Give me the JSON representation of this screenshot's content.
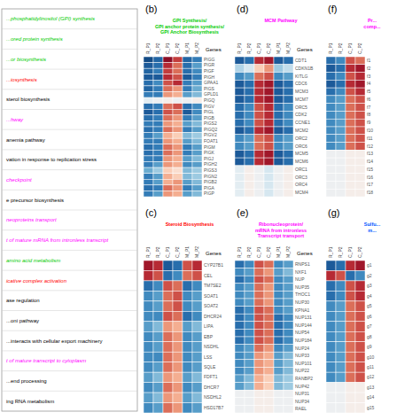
{
  "chart_data": [
    {
      "type": "list",
      "categories": [
        "...phosphatidylinositol (GPI) synthesis",
        "...ored protein synthesis",
        "...or biosynthesis",
        "...iosynthesis",
        "sterol biosynthesis",
        "...hway",
        "anemia pathway",
        "vation in response to replication stress",
        "checkpoint",
        "e precursor biosynthesis",
        "neoproteins transport",
        "t of mature mRNA from intronless transcript",
        "amino acid metabolism",
        "icative complex activation",
        "ase regulation",
        "...oni pathway",
        "...interacts with cellular export machinery",
        "t of mature transcript to cytoplasm",
        "...end processing",
        "ing RNA metabolism"
      ],
      "colors": [
        "#00cc00",
        "#00cc00",
        "#00cc00",
        "#ff0000",
        "#000000",
        "#ff00ff",
        "#000000",
        "#000000",
        "#ff00ff",
        "#000000",
        "#ff00ff",
        "#ff00ff",
        "#00cc00",
        "#ff0000",
        "#000000",
        "#000000",
        "#000000",
        "#ff00ff",
        "#000000",
        "#000000"
      ]
    },
    {
      "type": "heatmap",
      "label": "(b)",
      "title": "GPI Synthesis/\nGPI anchor protein synthesis/\nGPI Anchor Biosynthesis",
      "color": "#00cc00",
      "ylabel": "Genes",
      "x": [
        "R_P1",
        "R_P2",
        "C_P1",
        "C_P2",
        "M_P1",
        "M_P2"
      ],
      "y": [
        "PIGG",
        "PIGR",
        "PIGF",
        "PIGH",
        "GPAA1",
        "PIGS",
        "GPLD1",
        "PIGQ",
        "PIGV",
        "PIGL",
        "PIGB",
        "PIGS2",
        "PIGQ2",
        "PIGV2",
        "FOAT1",
        "PIGM",
        "PIGK",
        "PIGJ",
        "PIGH2",
        "PIGS3",
        "PIGN2",
        "PIGB2",
        "PIGA",
        "PIGP"
      ],
      "values": [
        [
          0.05,
          0.1,
          0.95,
          0.85,
          0.1,
          0.15
        ],
        [
          0.08,
          0.12,
          0.88,
          0.78,
          0.12,
          0.22
        ],
        [
          0.1,
          0.15,
          0.85,
          0.78,
          0.12,
          0.18
        ],
        [
          0.08,
          0.08,
          0.88,
          0.82,
          0.08,
          0.15
        ],
        [
          0.12,
          0.18,
          0.82,
          0.88,
          0.15,
          0.22
        ],
        [
          0.1,
          0.15,
          0.78,
          0.72,
          0.15,
          0.25
        ],
        [
          0.15,
          0.15,
          0.72,
          0.68,
          0.22,
          0.28
        ],
        [
          0.45,
          0.48,
          0.52,
          0.48,
          0.48,
          0.52
        ],
        [
          0.12,
          0.15,
          0.78,
          0.82,
          0.12,
          0.18
        ],
        [
          0.08,
          0.12,
          0.82,
          0.78,
          0.08,
          0.18
        ],
        [
          0.12,
          0.15,
          0.78,
          0.72,
          0.15,
          0.22
        ],
        [
          0.15,
          0.15,
          0.72,
          0.68,
          0.22,
          0.28
        ],
        [
          0.12,
          0.15,
          0.78,
          0.72,
          0.15,
          0.22
        ],
        [
          0.15,
          0.22,
          0.68,
          0.62,
          0.28,
          0.32
        ],
        [
          0.15,
          0.15,
          0.72,
          0.68,
          0.22,
          0.28
        ],
        [
          0.12,
          0.15,
          0.78,
          0.72,
          0.15,
          0.22
        ],
        [
          0.12,
          0.15,
          0.78,
          0.72,
          0.15,
          0.22
        ],
        [
          0.15,
          0.15,
          0.72,
          0.68,
          0.22,
          0.28
        ],
        [
          0.15,
          0.22,
          0.72,
          0.68,
          0.18,
          0.22
        ],
        [
          0.25,
          0.32,
          0.62,
          0.58,
          0.28,
          0.32
        ],
        [
          0.15,
          0.22,
          0.68,
          0.62,
          0.28,
          0.32
        ],
        [
          0.15,
          0.22,
          0.68,
          0.72,
          0.22,
          0.28
        ],
        [
          0.12,
          0.15,
          0.78,
          0.72,
          0.15,
          0.22
        ],
        [
          0.15,
          0.22,
          0.72,
          0.68,
          0.22,
          0.28
        ]
      ],
      "color_range": [
        0,
        1
      ]
    },
    {
      "type": "heatmap",
      "label": "(c)",
      "title": "Steroid Biosynthesis",
      "color": "#ff0000",
      "ylabel": "Genes",
      "x": [
        "R_P1",
        "R_P2",
        "C_P1",
        "C_P2",
        "M_P1",
        "M_P2"
      ],
      "y": [
        "CYP27B1",
        "CEL",
        "TM7SE2",
        "SOAT1",
        "SOAT2",
        "DHCR24",
        "LIPA",
        "EBP",
        "NSDHL",
        "LSS",
        "SQLE",
        "FDFT1",
        "DHCR7",
        "NSDHL2",
        "HSD17B7"
      ],
      "values": [
        [
          0.92,
          0.88,
          0.08,
          0.12,
          0.82,
          0.88
        ],
        [
          0.88,
          0.82,
          0.12,
          0.18,
          0.78,
          0.82
        ],
        [
          0.12,
          0.18,
          0.82,
          0.78,
          0.12,
          0.18
        ],
        [
          0.18,
          0.22,
          0.78,
          0.82,
          0.18,
          0.22
        ],
        [
          0.18,
          0.22,
          0.78,
          0.82,
          0.18,
          0.22
        ],
        [
          0.18,
          0.18,
          0.82,
          0.78,
          0.12,
          0.18
        ],
        [
          0.22,
          0.28,
          0.72,
          0.68,
          0.22,
          0.28
        ],
        [
          0.18,
          0.22,
          0.78,
          0.72,
          0.18,
          0.22
        ],
        [
          0.18,
          0.22,
          0.78,
          0.72,
          0.18,
          0.22
        ],
        [
          0.18,
          0.18,
          0.78,
          0.72,
          0.18,
          0.22
        ],
        [
          0.18,
          0.22,
          0.78,
          0.72,
          0.18,
          0.22
        ],
        [
          0.22,
          0.28,
          0.72,
          0.68,
          0.22,
          0.28
        ],
        [
          0.18,
          0.22,
          0.78,
          0.72,
          0.18,
          0.22
        ],
        [
          0.22,
          0.28,
          0.72,
          0.68,
          0.22,
          0.28
        ],
        [
          0.18,
          0.22,
          0.78,
          0.72,
          0.18,
          0.22
        ]
      ],
      "color_range": [
        0,
        1
      ]
    },
    {
      "type": "heatmap",
      "label": "(d)",
      "title": "MCM Pathway",
      "color": "#ff00ff",
      "ylabel": "Genes",
      "x": [
        "R_P1",
        "R_P2",
        "C_P1",
        "C_P2",
        "M_P1",
        "M_P2"
      ],
      "y": [
        "CDT1",
        "CDKN1B",
        "KITLG",
        "CDC6",
        "MCM3",
        "MCM7",
        "ORC5",
        "CDK2",
        "CCNE1",
        "MCM2",
        "ORC2",
        "ORC6",
        "MCM5",
        "MCM6",
        "ORC1",
        "ORC3",
        "ORC4",
        "MCM4"
      ],
      "values": [
        [
          0.08,
          0.12,
          0.88,
          0.92,
          0.08,
          0.12
        ],
        [
          0.35,
          0.42,
          0.62,
          0.72,
          0.32,
          0.38
        ],
        [
          0.18,
          0.22,
          0.78,
          0.82,
          0.18,
          0.22
        ],
        [
          0.08,
          0.12,
          0.88,
          0.92,
          0.08,
          0.12
        ],
        [
          0.08,
          0.12,
          0.88,
          0.92,
          0.08,
          0.12
        ],
        [
          0.08,
          0.12,
          0.88,
          0.92,
          0.08,
          0.12
        ],
        [
          0.12,
          0.18,
          0.82,
          0.88,
          0.12,
          0.18
        ],
        [
          0.12,
          0.18,
          0.82,
          0.88,
          0.12,
          0.18
        ],
        [
          0.12,
          0.18,
          0.82,
          0.88,
          0.12,
          0.18
        ],
        [
          0.08,
          0.12,
          0.88,
          0.92,
          0.08,
          0.12
        ],
        [
          0.18,
          0.22,
          0.78,
          0.82,
          0.18,
          0.22
        ],
        [
          0.18,
          0.22,
          0.78,
          0.82,
          0.18,
          0.22
        ],
        [
          0.08,
          0.12,
          0.88,
          0.92,
          0.08,
          0.12
        ],
        [
          0.08,
          0.12,
          0.88,
          0.92,
          0.08,
          0.12
        ],
        [
          0.45,
          0.52,
          0.48,
          0.42,
          0.48,
          0.52
        ],
        [
          0.45,
          0.52,
          0.48,
          0.42,
          0.48,
          0.52
        ],
        [
          0.45,
          0.52,
          0.48,
          0.42,
          0.48,
          0.52
        ],
        [
          0.45,
          0.52,
          0.48,
          0.42,
          0.48,
          0.52
        ]
      ],
      "color_range": [
        0,
        1
      ]
    },
    {
      "type": "heatmap",
      "label": "(e)",
      "title": "Ribonucleoprotein/\nmRNA from intronless\nTranscript transport",
      "color": "#ff00ff",
      "ylabel": "Genes",
      "x": [
        "R_P1",
        "R_P2",
        "C_P1",
        "C_P2",
        "M_P1",
        "M_P2"
      ],
      "y": [
        "RNPS1",
        "NXF1",
        "NUP",
        "NUP35",
        "THOC1",
        "NUP30",
        "KPNA1",
        "NUP131",
        "NUP144",
        "NUP54",
        "NUP184",
        "NUP24",
        "NUP33",
        "NUP101",
        "NUP22",
        "RANBP2",
        "NUP42",
        "NUP31",
        "NUP34",
        "RAEL"
      ],
      "values": [
        [
          0.12,
          0.18,
          0.82,
          0.78,
          0.18,
          0.22
        ],
        [
          0.18,
          0.22,
          0.78,
          0.72,
          0.22,
          0.28
        ],
        [
          0.12,
          0.18,
          0.82,
          0.78,
          0.18,
          0.22
        ],
        [
          0.18,
          0.22,
          0.78,
          0.72,
          0.18,
          0.22
        ],
        [
          0.18,
          0.22,
          0.78,
          0.72,
          0.18,
          0.22
        ],
        [
          0.18,
          0.22,
          0.78,
          0.72,
          0.18,
          0.22
        ],
        [
          0.12,
          0.18,
          0.82,
          0.78,
          0.18,
          0.22
        ],
        [
          0.12,
          0.18,
          0.82,
          0.78,
          0.12,
          0.18
        ],
        [
          0.12,
          0.18,
          0.82,
          0.78,
          0.12,
          0.18
        ],
        [
          0.12,
          0.18,
          0.82,
          0.78,
          0.12,
          0.18
        ],
        [
          0.12,
          0.18,
          0.82,
          0.78,
          0.12,
          0.18
        ],
        [
          0.18,
          0.22,
          0.78,
          0.72,
          0.18,
          0.22
        ],
        [
          0.18,
          0.22,
          0.72,
          0.68,
          0.22,
          0.28
        ],
        [
          0.18,
          0.22,
          0.72,
          0.68,
          0.22,
          0.28
        ],
        [
          0.18,
          0.22,
          0.72,
          0.68,
          0.22,
          0.28
        ],
        [
          0.22,
          0.28,
          0.68,
          0.62,
          0.28,
          0.32
        ],
        [
          0.22,
          0.28,
          0.68,
          0.62,
          0.28,
          0.32
        ],
        [
          0.48,
          0.48,
          0.52,
          0.52,
          0.48,
          0.48
        ],
        [
          0.48,
          0.48,
          0.52,
          0.52,
          0.48,
          0.48
        ],
        [
          0.48,
          0.48,
          0.52,
          0.52,
          0.48,
          0.48
        ]
      ],
      "color_range": [
        0,
        1
      ]
    },
    {
      "type": "heatmap",
      "label": "(f)",
      "title": "Pr...\ncomp...",
      "color": "#ff00ff",
      "x": [
        "R_P1",
        "R_P2",
        "C_P1",
        "C_P2"
      ],
      "y": [
        "f1",
        "f2",
        "f3",
        "f4",
        "f5",
        "f6",
        "f7",
        "f8",
        "f9",
        "f10",
        "f11",
        "f12",
        "f13",
        "f14",
        "f15",
        "f16",
        "f17",
        "f18"
      ],
      "values": [
        [
          0.12,
          0.18,
          0.82,
          0.78
        ],
        [
          0.08,
          0.12,
          0.88,
          0.92
        ],
        [
          0.12,
          0.18,
          0.82,
          0.88
        ],
        [
          0.08,
          0.12,
          0.88,
          0.92
        ],
        [
          0.12,
          0.18,
          0.82,
          0.88
        ],
        [
          0.18,
          0.22,
          0.78,
          0.82
        ],
        [
          0.18,
          0.22,
          0.78,
          0.82
        ],
        [
          0.18,
          0.22,
          0.78,
          0.82
        ],
        [
          0.18,
          0.22,
          0.78,
          0.82
        ],
        [
          0.18,
          0.22,
          0.78,
          0.82
        ],
        [
          0.18,
          0.22,
          0.78,
          0.82
        ],
        [
          0.18,
          0.22,
          0.78,
          0.82
        ],
        [
          0.48,
          0.48,
          0.52,
          0.52
        ],
        [
          0.48,
          0.48,
          0.52,
          0.52
        ],
        [
          0.48,
          0.48,
          0.52,
          0.52
        ],
        [
          0.48,
          0.48,
          0.52,
          0.52
        ],
        [
          0.48,
          0.48,
          0.52,
          0.52
        ],
        [
          0.48,
          0.48,
          0.52,
          0.52
        ]
      ],
      "color_range": [
        0,
        1
      ]
    },
    {
      "type": "heatmap",
      "label": "(g)",
      "title": "Sulfu...\nm...",
      "color": "#0055ff",
      "x": [
        "R_P1",
        "R_P2",
        "C_P1",
        "C_P2"
      ],
      "y": [
        "g1",
        "g2",
        "g3",
        "g4",
        "g5",
        "g6",
        "g7",
        "g8",
        "g9",
        "g10",
        "g11",
        "g12",
        "g13",
        "g14",
        "g15"
      ],
      "values": [
        [
          0.08,
          0.12,
          0.88,
          0.92
        ],
        [
          0.88,
          0.82,
          0.12,
          0.18
        ],
        [
          0.12,
          0.18,
          0.82,
          0.88
        ],
        [
          0.12,
          0.18,
          0.82,
          0.88
        ],
        [
          0.18,
          0.22,
          0.78,
          0.82
        ],
        [
          0.18,
          0.22,
          0.78,
          0.82
        ],
        [
          0.18,
          0.22,
          0.78,
          0.82
        ],
        [
          0.18,
          0.22,
          0.78,
          0.82
        ],
        [
          0.18,
          0.22,
          0.78,
          0.82
        ],
        [
          0.18,
          0.22,
          0.78,
          0.82
        ],
        [
          0.18,
          0.22,
          0.78,
          0.82
        ],
        [
          0.18,
          0.22,
          0.78,
          0.82
        ],
        [
          0.48,
          0.48,
          0.52,
          0.52
        ],
        [
          0.48,
          0.48,
          0.52,
          0.52
        ],
        [
          0.48,
          0.48,
          0.52,
          0.52
        ]
      ],
      "color_range": [
        0,
        1
      ]
    }
  ]
}
